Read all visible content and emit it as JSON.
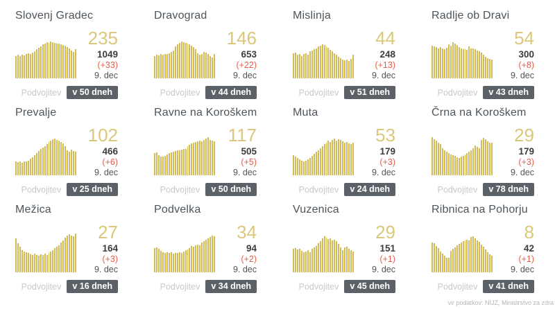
{
  "page": {
    "footer_source": "vir podatkov: NIJZ, Ministrstvo za zdra"
  },
  "labels": {
    "doubling": "Podvojitev"
  },
  "colors": {
    "bar": "#d3bc57",
    "active_number": "#dbc77b",
    "title": "#4c545b",
    "total": "#3d3d3d",
    "delta": "#df604e",
    "date": "#545454",
    "doubling_label": "#c8c8c8",
    "badge_bg": "#5b6167",
    "badge_text": "#ffffff",
    "footer_text": "#b5b5b5",
    "background": "#ffffff"
  },
  "cards": [
    {
      "name": "Slovenj Gradec",
      "active": "235",
      "total": "1049",
      "delta": "(+33)",
      "date": "9. dec",
      "badge": "v 50 dneh"
    },
    {
      "name": "Dravograd",
      "active": "146",
      "total": "653",
      "delta": "(+22)",
      "date": "9. dec",
      "badge": "v 44 dneh"
    },
    {
      "name": "Mislinja",
      "active": "44",
      "total": "248",
      "delta": "(+13)",
      "date": "9. dec",
      "badge": "v 51 dneh"
    },
    {
      "name": "Radlje ob Dravi",
      "active": "54",
      "total": "300",
      "delta": "(+8)",
      "date": "9. dec",
      "badge": "v 43 dneh"
    },
    {
      "name": "Prevalje",
      "active": "102",
      "total": "466",
      "delta": "(+6)",
      "date": "9. dec",
      "badge": "v 25 dneh"
    },
    {
      "name": "Ravne na Koroškem",
      "active": "117",
      "total": "505",
      "delta": "(+5)",
      "date": "9. dec",
      "badge": "v 50 dneh"
    },
    {
      "name": "Muta",
      "active": "53",
      "total": "179",
      "delta": "(+3)",
      "date": "9. dec",
      "badge": "v 24 dneh"
    },
    {
      "name": "Črna na Koroškem",
      "active": "29",
      "total": "179",
      "delta": "(+3)",
      "date": "9. dec",
      "badge": "v 78 dneh"
    },
    {
      "name": "Mežica",
      "active": "27",
      "total": "164",
      "delta": "(+3)",
      "date": "9. dec",
      "badge": "v 16 dneh"
    },
    {
      "name": "Podvelka",
      "active": "34",
      "total": "94",
      "delta": "(+2)",
      "date": "9. dec",
      "badge": "v 34 dneh"
    },
    {
      "name": "Vuzenica",
      "active": "29",
      "total": "151",
      "delta": "(+1)",
      "date": "9. dec",
      "badge": "v 45 dneh"
    },
    {
      "name": "Ribnica na Pohorju",
      "active": "8",
      "total": "42",
      "delta": "(+1)",
      "date": "9. dec",
      "badge": "v 41 dneh"
    }
  ],
  "chart_data": [
    {
      "type": "bar",
      "title": "Slovenj Gradec",
      "ylabel": "relative height %",
      "xlabel": "days (unlabeled sparkline)",
      "values": [
        55,
        58,
        56,
        59,
        57,
        60,
        62,
        61,
        64,
        67,
        72,
        76,
        80,
        84,
        87,
        90,
        89,
        91,
        90,
        88,
        87,
        86,
        85,
        83,
        81,
        78,
        75,
        70,
        66,
        72
      ]
    },
    {
      "type": "bar",
      "title": "Dravograd",
      "ylabel": "relative height %",
      "xlabel": "days (unlabeled sparkline)",
      "values": [
        55,
        58,
        57,
        60,
        59,
        61,
        60,
        63,
        66,
        70,
        80,
        85,
        88,
        92,
        90,
        88,
        86,
        84,
        81,
        77,
        72,
        62,
        58,
        60,
        66,
        64,
        61,
        56,
        52,
        60
      ]
    },
    {
      "type": "bar",
      "title": "Mislinja",
      "ylabel": "relative height %",
      "xlabel": "days (unlabeled sparkline)",
      "values": [
        62,
        64,
        58,
        61,
        56,
        60,
        63,
        59,
        67,
        70,
        73,
        75,
        79,
        82,
        85,
        83,
        80,
        76,
        71,
        67,
        63,
        59,
        54,
        50,
        47,
        45,
        46,
        44,
        48,
        58
      ]
    },
    {
      "type": "bar",
      "title": "Radlje ob Dravi",
      "ylabel": "relative height %",
      "xlabel": "days (unlabeled sparkline)",
      "values": [
        82,
        79,
        77,
        75,
        78,
        74,
        72,
        76,
        85,
        82,
        90,
        87,
        83,
        77,
        74,
        73,
        72,
        71,
        79,
        75,
        74,
        72,
        70,
        68,
        64,
        58,
        54,
        50,
        48,
        46
      ]
    },
    {
      "type": "bar",
      "title": "Prevalje",
      "ylabel": "relative height %",
      "xlabel": "days (unlabeled sparkline)",
      "values": [
        35,
        33,
        34,
        32,
        35,
        34,
        37,
        41,
        45,
        50,
        55,
        60,
        65,
        69,
        73,
        78,
        83,
        87,
        90,
        92,
        89,
        86,
        83,
        79,
        73,
        63,
        58,
        64,
        61,
        58
      ]
    },
    {
      "type": "bar",
      "title": "Ravne na Koroškem",
      "ylabel": "relative height %",
      "xlabel": "days (unlabeled sparkline)",
      "values": [
        55,
        57,
        50,
        47,
        46,
        48,
        52,
        55,
        57,
        59,
        61,
        63,
        62,
        64,
        66,
        65,
        72,
        76,
        79,
        82,
        83,
        85,
        86,
        84,
        88,
        92,
        95,
        89,
        86,
        84
      ]
    },
    {
      "type": "bar",
      "title": "Muta",
      "ylabel": "relative height %",
      "xlabel": "days (unlabeled sparkline)",
      "values": [
        50,
        47,
        44,
        40,
        37,
        35,
        36,
        40,
        44,
        48,
        53,
        58,
        63,
        68,
        73,
        78,
        82,
        86,
        83,
        89,
        91,
        87,
        90,
        88,
        85,
        81,
        83,
        80,
        78,
        81
      ]
    },
    {
      "type": "bar",
      "title": "Črna na Koroškem",
      "ylabel": "relative height %",
      "xlabel": "days (unlabeled sparkline)",
      "values": [
        95,
        90,
        87,
        82,
        77,
        68,
        63,
        59,
        55,
        52,
        50,
        48,
        45,
        44,
        46,
        49,
        52,
        56,
        59,
        63,
        68,
        75,
        71,
        68,
        88,
        93,
        90,
        84,
        81,
        82
      ]
    },
    {
      "type": "bar",
      "title": "Mežica",
      "ylabel": "relative height %",
      "xlabel": "days (unlabeled sparkline)",
      "values": [
        85,
        72,
        64,
        56,
        52,
        50,
        48,
        45,
        43,
        46,
        44,
        42,
        45,
        43,
        46,
        44,
        48,
        52,
        56,
        60,
        64,
        68,
        74,
        80,
        86,
        91,
        95,
        92,
        90,
        96
      ]
    },
    {
      "type": "bar",
      "title": "Podvelka",
      "ylabel": "relative height %",
      "xlabel": "days (unlabeled sparkline)",
      "values": [
        60,
        62,
        58,
        54,
        51,
        49,
        51,
        48,
        50,
        47,
        49,
        48,
        50,
        49,
        52,
        55,
        57,
        60,
        66,
        64,
        67,
        70,
        68,
        74,
        78,
        82,
        85,
        89,
        92,
        90
      ]
    },
    {
      "type": "bar",
      "title": "Vuzenica",
      "ylabel": "relative height %",
      "xlabel": "days (unlabeled sparkline)",
      "values": [
        58,
        60,
        57,
        59,
        53,
        50,
        52,
        55,
        51,
        58,
        62,
        66,
        72,
        77,
        84,
        90,
        86,
        83,
        85,
        80,
        82,
        77,
        71,
        63,
        55,
        62,
        64,
        59,
        56,
        52
      ]
    },
    {
      "type": "bar",
      "title": "Ribnica na Pohorju",
      "ylabel": "relative height %",
      "xlabel": "days (unlabeled sparkline)",
      "values": [
        75,
        72,
        66,
        60,
        52,
        46,
        41,
        37,
        36,
        54,
        58,
        62,
        68,
        71,
        74,
        78,
        80,
        82,
        79,
        88,
        90,
        85,
        80,
        76,
        70,
        64,
        57,
        50,
        45,
        41
      ]
    }
  ]
}
